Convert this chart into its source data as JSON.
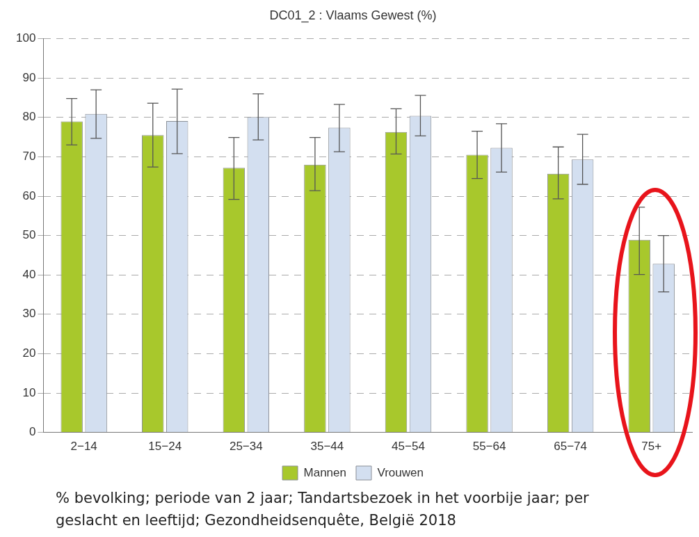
{
  "chart_data": {
    "type": "bar",
    "title": "DC01_2 : Vlaams Gewest (%)",
    "categories": [
      "2−14",
      "15−24",
      "25−34",
      "35−44",
      "45−54",
      "55−64",
      "65−74",
      "75+"
    ],
    "series": [
      {
        "name": "Mannen",
        "color": "#a8c82c",
        "values": [
          79,
          75.5,
          67.2,
          68,
          76.3,
          70.5,
          65.7,
          48.9
        ],
        "errors": [
          [
            73,
            84.8
          ],
          [
            67.4,
            83.6
          ],
          [
            59.2,
            74.9
          ],
          [
            61.4,
            74.9
          ],
          [
            70.7,
            82.2
          ],
          [
            64.5,
            76.5
          ],
          [
            59.3,
            72.5
          ],
          [
            40.1,
            57.2
          ]
        ]
      },
      {
        "name": "Vrouwen",
        "color": "#d3dff0",
        "values": [
          80.9,
          79.1,
          80.1,
          77.4,
          80.4,
          72.3,
          69.3,
          42.8
        ],
        "errors": [
          [
            74.7,
            87
          ],
          [
            70.8,
            87.2
          ],
          [
            74.3,
            86
          ],
          [
            71.3,
            83.3
          ],
          [
            75.3,
            85.6
          ],
          [
            66.1,
            78.4
          ],
          [
            63,
            75.7
          ],
          [
            35.7,
            50
          ]
        ]
      }
    ],
    "ylim": [
      0,
      100
    ],
    "yticks": [
      0,
      10,
      20,
      30,
      40,
      50,
      60,
      70,
      80,
      90,
      100
    ],
    "grid": "y",
    "legend": "bottom",
    "annotations": [
      "% bevolking; periode van 2 jaar; Tandartsbezoek in het voorbije jaar; per geslacht en leeftijd; Gezondheidsenquête, België 2018"
    ]
  }
}
